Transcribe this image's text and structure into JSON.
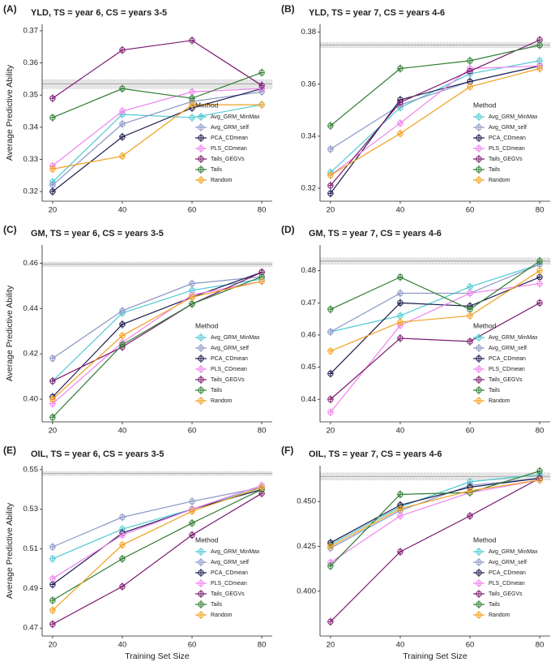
{
  "chart_data": [
    {
      "type": "line",
      "panel_label": "(A)",
      "title": "YLD, TS = year 6, CS = years 3-5",
      "y_label": "Average Predictive Ability",
      "x": [
        20,
        40,
        60,
        80
      ],
      "xlim": [
        17,
        83
      ],
      "xticks": [
        20,
        40,
        60,
        80
      ],
      "ylim": [
        0.317,
        0.372
      ],
      "yticks": [
        0.32,
        0.33,
        0.34,
        0.35,
        0.36,
        0.37
      ],
      "reference": {
        "value": 0.3535,
        "band": [
          0.352,
          0.3548
        ]
      },
      "legend_title": "Method",
      "series": [
        {
          "name": "Avg_GRM_MinMax",
          "color": "#4fc8d2",
          "values": [
            0.323,
            0.344,
            0.343,
            0.347
          ]
        },
        {
          "name": "Avg_GRM_self",
          "color": "#8a96c4",
          "values": [
            0.322,
            0.341,
            0.348,
            0.351
          ]
        },
        {
          "name": "PCA_CDmean",
          "color": "#1c1c4e",
          "values": [
            0.32,
            0.337,
            0.346,
            0.352
          ]
        },
        {
          "name": "PLS_CDmean",
          "color": "#ee82ee",
          "values": [
            0.328,
            0.345,
            0.351,
            0.352
          ]
        },
        {
          "name": "Tails_GEGVs",
          "color": "#7b1a6e",
          "values": [
            0.349,
            0.364,
            0.367,
            0.353
          ]
        },
        {
          "name": "Tails",
          "color": "#2e7d32",
          "values": [
            0.343,
            0.352,
            0.349,
            0.357
          ]
        },
        {
          "name": "Random",
          "color": "#f0a020",
          "values": [
            0.327,
            0.331,
            0.347,
            0.347
          ]
        }
      ]
    },
    {
      "type": "line",
      "panel_label": "(B)",
      "title": "YLD, TS = year 7, CS = years 4-6",
      "x": [
        20,
        40,
        60,
        80
      ],
      "xlim": [
        17,
        83
      ],
      "xticks": [
        20,
        40,
        60,
        80
      ],
      "ylim": [
        0.315,
        0.383
      ],
      "yticks": [
        0.32,
        0.34,
        0.36,
        0.38
      ],
      "reference": {
        "value": 0.375,
        "band": [
          0.374,
          0.376
        ]
      },
      "legend_title": "Method",
      "series": [
        {
          "name": "Avg_GRM_MinMax",
          "color": "#4fc8d2",
          "values": [
            0.326,
            0.351,
            0.364,
            0.369
          ]
        },
        {
          "name": "Avg_GRM_self",
          "color": "#8a96c4",
          "values": [
            0.335,
            0.352,
            0.361,
            0.367
          ]
        },
        {
          "name": "PCA_CDmean",
          "color": "#1c1c4e",
          "values": [
            0.318,
            0.354,
            0.361,
            0.367
          ]
        },
        {
          "name": "PLS_CDmean",
          "color": "#ee82ee",
          "values": [
            0.325,
            0.345,
            0.366,
            0.367
          ]
        },
        {
          "name": "Tails_GEGVs",
          "color": "#7b1a6e",
          "values": [
            0.321,
            0.353,
            0.365,
            0.377
          ]
        },
        {
          "name": "Tails",
          "color": "#2e7d32",
          "values": [
            0.344,
            0.366,
            0.369,
            0.375
          ]
        },
        {
          "name": "Random",
          "color": "#f0a020",
          "values": [
            0.325,
            0.341,
            0.359,
            0.366
          ]
        }
      ]
    },
    {
      "type": "line",
      "panel_label": "(C)",
      "title": "GM, TS = year 6, CS = years 3-5",
      "y_label": "Average Predictive Ability",
      "x": [
        20,
        40,
        60,
        80
      ],
      "xlim": [
        17,
        83
      ],
      "xticks": [
        20,
        40,
        60,
        80
      ],
      "ylim": [
        0.39,
        0.468
      ],
      "yticks": [
        {
          "value": 0.4,
          "label": "0.40"
        },
        0.42,
        0.44,
        0.46
      ],
      "reference": {
        "value": 0.4595,
        "band": [
          0.4585,
          0.4605
        ]
      },
      "legend_title": "Method",
      "series": [
        {
          "name": "Avg_GRM_MinMax",
          "color": "#4fc8d2",
          "values": [
            0.408,
            0.438,
            0.448,
            0.453
          ]
        },
        {
          "name": "Avg_GRM_self",
          "color": "#8a96c4",
          "values": [
            0.418,
            0.439,
            0.451,
            0.454
          ]
        },
        {
          "name": "PCA_CDmean",
          "color": "#1c1c4e",
          "values": [
            0.401,
            0.433,
            0.445,
            0.456
          ]
        },
        {
          "name": "PLS_CDmean",
          "color": "#ee82ee",
          "values": [
            0.398,
            0.425,
            0.446,
            0.452
          ]
        },
        {
          "name": "Tails_GEGVs",
          "color": "#7b1a6e",
          "values": [
            0.408,
            0.423,
            0.442,
            0.456
          ]
        },
        {
          "name": "Tails",
          "color": "#2e7d32",
          "values": [
            0.392,
            0.424,
            0.442,
            0.454
          ]
        },
        {
          "name": "Random",
          "color": "#f0a020",
          "values": [
            0.4,
            0.428,
            0.445,
            0.452
          ]
        }
      ]
    },
    {
      "type": "line",
      "panel_label": "(D)",
      "title": "GM, TS = year 7, CS = years 4-6",
      "x": [
        20,
        40,
        60,
        80
      ],
      "xlim": [
        17,
        83
      ],
      "xticks": [
        20,
        40,
        60,
        80
      ],
      "ylim": [
        0.433,
        0.488
      ],
      "yticks": [
        0.44,
        0.45,
        0.46,
        0.47,
        0.48
      ],
      "reference": {
        "value": 0.483,
        "band": [
          0.482,
          0.484
        ]
      },
      "legend_title": "Method",
      "series": [
        {
          "name": "Avg_GRM_MinMax",
          "color": "#4fc8d2",
          "values": [
            0.461,
            0.466,
            0.475,
            0.482
          ]
        },
        {
          "name": "Avg_GRM_self",
          "color": "#8a96c4",
          "values": [
            0.461,
            0.473,
            0.473,
            0.482
          ]
        },
        {
          "name": "PCA_CDmean",
          "color": "#1c1c4e",
          "values": [
            0.448,
            0.47,
            0.469,
            0.478
          ]
        },
        {
          "name": "PLS_CDmean",
          "color": "#ee82ee",
          "values": [
            0.436,
            0.463,
            0.473,
            0.476
          ]
        },
        {
          "name": "Tails_GEGVs",
          "color": "#7b1a6e",
          "values": [
            0.44,
            0.459,
            0.458,
            0.47
          ]
        },
        {
          "name": "Tails",
          "color": "#2e7d32",
          "values": [
            0.468,
            0.478,
            0.468,
            0.483
          ]
        },
        {
          "name": "Random",
          "color": "#f0a020",
          "values": [
            0.455,
            0.464,
            0.466,
            0.48
          ]
        }
      ]
    },
    {
      "type": "line",
      "panel_label": "(E)",
      "title": "OIL, TS = year 6, CS = years 3-5",
      "y_label": "Average Predictive Ability",
      "x_label": "Training Set Size",
      "x": [
        20,
        40,
        60,
        80
      ],
      "xlim": [
        17,
        83
      ],
      "xticks": [
        20,
        40,
        60,
        80
      ],
      "ylim": [
        0.466,
        0.552
      ],
      "yticks": [
        0.47,
        0.49,
        0.51,
        0.53,
        0.55
      ],
      "reference": {
        "value": 0.548,
        "band": [
          0.547,
          0.549
        ]
      },
      "legend_title": "Method",
      "series": [
        {
          "name": "Avg_GRM_MinMax",
          "color": "#4fc8d2",
          "values": [
            0.505,
            0.52,
            0.53,
            0.541
          ]
        },
        {
          "name": "Avg_GRM_self",
          "color": "#8a96c4",
          "values": [
            0.511,
            0.526,
            0.534,
            0.541
          ]
        },
        {
          "name": "PCA_CDmean",
          "color": "#1c1c4e",
          "values": [
            0.492,
            0.518,
            0.53,
            0.54
          ]
        },
        {
          "name": "PLS_CDmean",
          "color": "#ee82ee",
          "values": [
            0.495,
            0.517,
            0.53,
            0.542
          ]
        },
        {
          "name": "Tails_GEGVs",
          "color": "#7b1a6e",
          "values": [
            0.472,
            0.491,
            0.517,
            0.538
          ]
        },
        {
          "name": "Tails",
          "color": "#2e7d32",
          "values": [
            0.484,
            0.505,
            0.523,
            0.54
          ]
        },
        {
          "name": "Random",
          "color": "#f0a020",
          "values": [
            0.479,
            0.512,
            0.529,
            0.541
          ]
        }
      ]
    },
    {
      "type": "line",
      "panel_label": "(F)",
      "title": "OIL, TS = year 7, CS = years 4-6",
      "x_label": "Training Set Size",
      "x": [
        20,
        40,
        60,
        80
      ],
      "xlim": [
        17,
        83
      ],
      "xticks": [
        20,
        40,
        60,
        80
      ],
      "ylim": [
        0.375,
        0.47
      ],
      "yticks": [
        {
          "value": 0.4,
          "label": "0.400"
        },
        0.425,
        {
          "value": 0.45,
          "label": "0.450"
        }
      ],
      "reference": {
        "value": 0.464,
        "band": [
          0.462,
          0.466
        ]
      },
      "legend_title": "Method",
      "series": [
        {
          "name": "Avg_GRM_MinMax",
          "color": "#4fc8d2",
          "values": [
            0.426,
            0.447,
            0.461,
            0.465
          ]
        },
        {
          "name": "Avg_GRM_self",
          "color": "#8a96c4",
          "values": [
            0.424,
            0.445,
            0.459,
            0.463
          ]
        },
        {
          "name": "PCA_CDmean",
          "color": "#1c1c4e",
          "values": [
            0.427,
            0.448,
            0.458,
            0.463
          ]
        },
        {
          "name": "PLS_CDmean",
          "color": "#ee82ee",
          "values": [
            0.416,
            0.442,
            0.455,
            0.462
          ]
        },
        {
          "name": "Tails_GEGVs",
          "color": "#7b1a6e",
          "values": [
            0.383,
            0.422,
            0.442,
            0.463
          ]
        },
        {
          "name": "Tails",
          "color": "#2e7d32",
          "values": [
            0.414,
            0.454,
            0.455,
            0.467
          ]
        },
        {
          "name": "Random",
          "color": "#f0a020",
          "values": [
            0.425,
            0.446,
            0.456,
            0.462
          ]
        }
      ]
    }
  ]
}
